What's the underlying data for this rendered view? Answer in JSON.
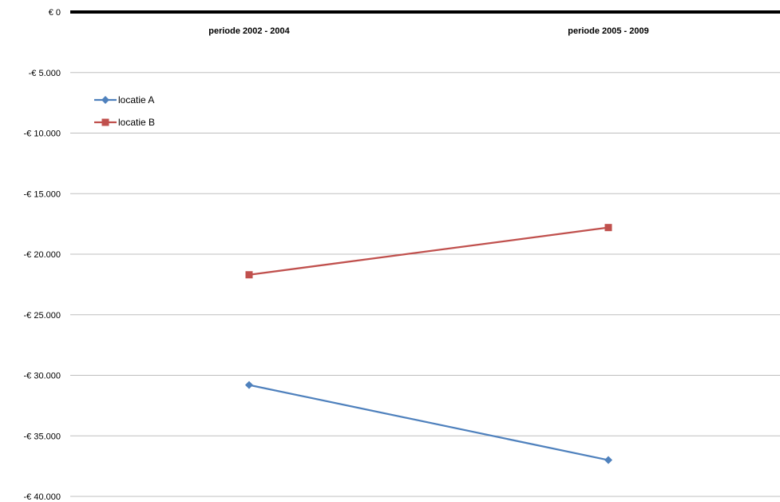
{
  "chart_data": {
    "type": "line",
    "categories": [
      "periode 2002 - 2004",
      "periode 2005 - 2009"
    ],
    "series": [
      {
        "name": "locatie A",
        "values": [
          -30800,
          -37000
        ],
        "color": "#4F81BD",
        "marker": "diamond"
      },
      {
        "name": "locatie B",
        "values": [
          -21700,
          -17800
        ],
        "color": "#C0504D",
        "marker": "square"
      }
    ],
    "y_ticks": [
      0,
      -5000,
      -10000,
      -15000,
      -20000,
      -25000,
      -30000,
      -35000,
      -40000
    ],
    "y_tick_labels": [
      "€ 0",
      "-€ 5.000",
      "-€ 10.000",
      "-€ 15.000",
      "-€ 20.000",
      "-€ 25.000",
      "-€ 30.000",
      "-€ 35.000",
      "-€ 40.000"
    ],
    "ylim": [
      -40000,
      0
    ],
    "x_axis_position": "top",
    "grid": true,
    "legend_position": "top-left",
    "title": "",
    "xlabel": "",
    "ylabel": ""
  }
}
